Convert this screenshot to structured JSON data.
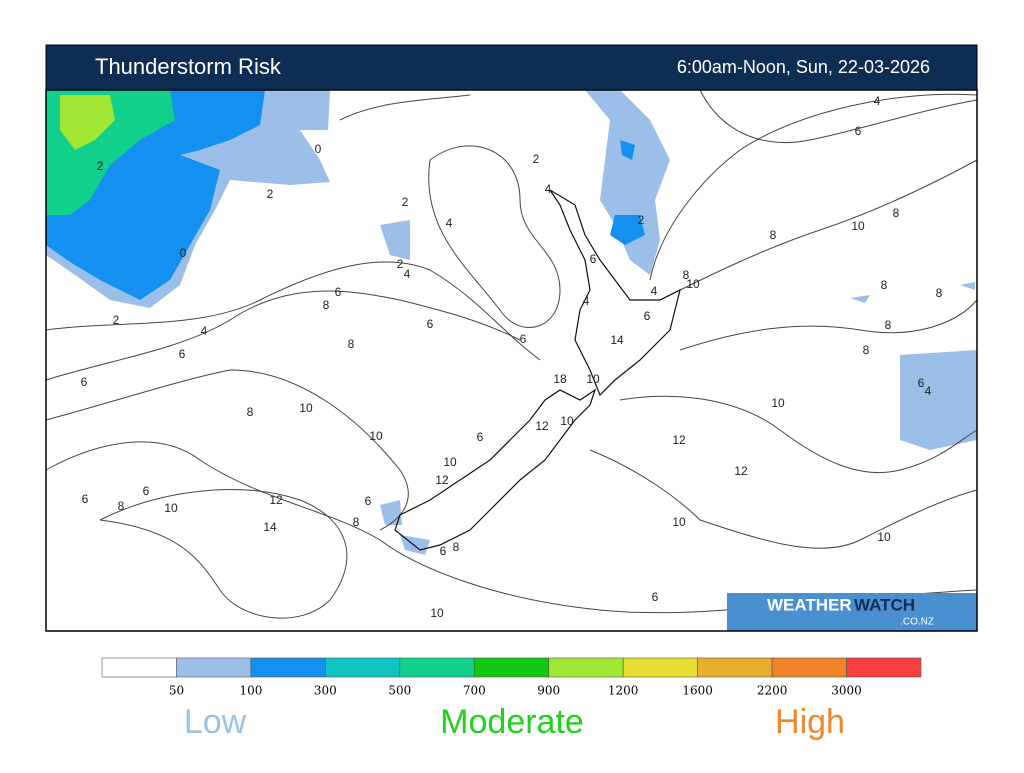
{
  "header": {
    "title": "Thunderstorm Risk",
    "time": "6:00am-Noon, Sun, 22-03-2026"
  },
  "map": {
    "contour_labels": [
      2,
      0,
      0,
      2,
      2,
      2,
      4,
      4,
      2,
      4,
      2,
      4,
      6,
      8,
      8,
      10,
      8,
      8,
      8,
      8,
      6,
      4,
      10,
      12,
      12,
      10,
      10,
      6,
      10,
      14,
      12,
      10,
      8,
      6,
      6,
      8,
      6,
      6,
      8,
      12,
      10,
      6,
      12,
      10,
      18,
      10,
      14,
      6,
      4,
      8,
      10,
      6,
      4,
      6,
      6,
      8,
      6,
      8,
      6,
      4,
      2,
      6,
      8,
      10,
      10
    ]
  },
  "logo": {
    "part1": "WEATHER",
    "part2": "WATCH",
    "domain": ".CO.NZ"
  },
  "legend": {
    "colors": [
      "#ffffff",
      "#9bbfe8",
      "#1490f0",
      "#10c4c4",
      "#10d08c",
      "#10c810",
      "#a0e632",
      "#e6dc32",
      "#e6ae2d",
      "#f08228",
      "#f64040"
    ],
    "ticks": [
      50,
      100,
      300,
      500,
      700,
      900,
      1200,
      1600,
      2200,
      3000
    ],
    "labels": [
      {
        "text": "Low",
        "color": "#9bc3e4"
      },
      {
        "text": "Moderate",
        "color": "#1ed21e"
      },
      {
        "text": "High",
        "color": "#f0872d"
      }
    ]
  }
}
